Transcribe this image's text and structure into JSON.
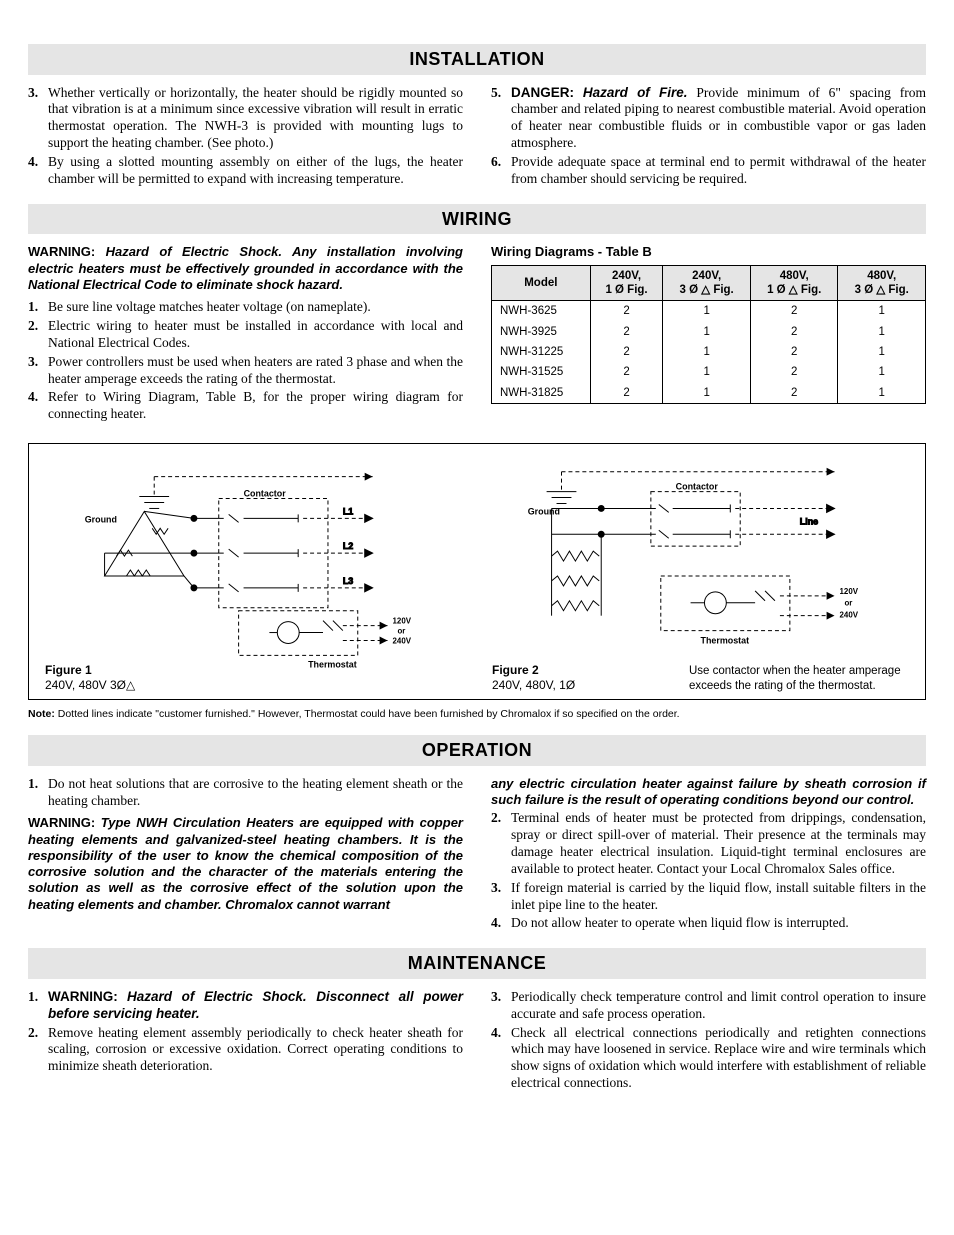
{
  "sections": {
    "installation": "INSTALLATION",
    "wiring": "WIRING",
    "operation": "OPERATION",
    "maintenance": "MAINTENANCE"
  },
  "installation_left": [
    {
      "n": "3.",
      "t": "Whether vertically or horizontally, the heater should be rigidly mounted so that vibration is at a minimum since excessive vibration will result in erratic thermostat operation. The NWH-3 is provided with mounting lugs to support the heating chamber. (See photo.)"
    },
    {
      "n": "4.",
      "t": "By using a slotted mounting assembly on either of the lugs, the heater chamber will be permitted to expand with increasing temperature."
    }
  ],
  "installation_right": [
    {
      "n": "5.",
      "label": "DANGER:",
      "em": "Hazard of Fire.",
      "t": " Provide minimum of 6\" spacing from chamber and related piping to nearest combustible material. Avoid operation of heater near combustible fluids or in combustible vapor or gas laden atmosphere."
    },
    {
      "n": "6.",
      "t": "Provide adequate space at terminal end to permit withdrawal of the heater from chamber should servicing be required."
    }
  ],
  "wiring_warning_label": "WARNING: ",
  "wiring_warning": "Hazard of Electric Shock. Any installation involving electric heaters must be effectively grounded in accordance with the National Electrical Code to eliminate shock hazard.",
  "wiring_list": [
    {
      "n": "1.",
      "t": "Be sure line voltage matches heater voltage (on nameplate)."
    },
    {
      "n": "2.",
      "t": "Electric wiring to heater must be installed in accordance with local and National Electrical Codes."
    },
    {
      "n": "3.",
      "t": "Power controllers must be used when heaters are rated 3 phase and when the heater amperage exceeds the rating of the thermostat."
    },
    {
      "n": "4.",
      "t": "Refer to Wiring Diagram, Table B, for the proper wiring diagram for connecting heater."
    }
  ],
  "table_title": "Wiring Diagrams - Table B",
  "table": {
    "columns": [
      "Model",
      "240V,\n1 Ø   Fig.",
      "240V,\n3 Ø △ Fig.",
      "480V,\n1 Ø △ Fig.",
      "480V,\n3 Ø △ Fig."
    ],
    "rows": [
      [
        "NWH-3625",
        "2",
        "1",
        "2",
        "1"
      ],
      [
        "NWH-3925",
        "2",
        "1",
        "2",
        "1"
      ],
      [
        "NWH-31225",
        "2",
        "1",
        "2",
        "1"
      ],
      [
        "NWH-31525",
        "2",
        "1",
        "2",
        "1"
      ],
      [
        "NWH-31825",
        "2",
        "1",
        "2",
        "1"
      ]
    ],
    "header_bg": "#e5e5e5",
    "border_color": "#000000"
  },
  "figures": {
    "f1": {
      "label": "Figure 1",
      "sub": "240V, 480V 3Ø△"
    },
    "f2": {
      "label": "Figure 2",
      "sub": "240V, 480V, 1Ø",
      "note": "Use contactor when the heater amperage exceeds the rating of the thermostat."
    },
    "svg_labels": {
      "ground": "Ground",
      "contactor": "Contactor",
      "l1": "L1",
      "l2": "L2",
      "l3": "L3",
      "line": "Line",
      "v120": "120V",
      "or": "or",
      "v240": "240V",
      "thermostat": "Thermostat"
    }
  },
  "diagrams_note_label": "Note:",
  "diagrams_note": " Dotted lines indicate \"customer furnished.\" However, Thermostat could have been furnished by Chromalox if so specified on the order.",
  "operation_left_1": {
    "n": "1.",
    "t": "Do not heat solutions that are corrosive to the heating element sheath or the heating chamber."
  },
  "op_warn_label": "WARNING: ",
  "op_warn_left": "Type NWH Circulation Heaters are equipped with copper heating elements and galvanized-steel heating chambers. It is the responsibility of the user to know the chemical composition of the corrosive solution and the character of the materials entering the solution as well as the corrosive effect of the solution upon the heating elements and chamber. Chromalox cannot warrant",
  "op_warn_right": "any electric circulation heater against failure by sheath corrosion if such failure is the result of operating conditions beyond our control.",
  "operation_right": [
    {
      "n": "2.",
      "t": "Terminal ends of heater must be protected from drippings, condensation, spray or direct spill-over of material. Their presence at the terminals may damage heater electrical insulation. Liquid-tight terminal enclosures are available to protect heater. Contact your Local Chromalox Sales office."
    },
    {
      "n": "3.",
      "t": "If foreign material is carried by the liquid flow, install suitable filters in the inlet pipe line to the heater."
    },
    {
      "n": "4.",
      "t": "Do not allow heater to operate when liquid flow is interrupted."
    }
  ],
  "maintenance_left": [
    {
      "n": "1.",
      "label": "WARNING:",
      "em": "Hazard of Electric Shock. Disconnect all power before servicing heater."
    },
    {
      "n": "2.",
      "t": "Remove heating element assembly periodically to check heater sheath for scaling, corrosion or excessive oxidation. Correct operating conditions to minimize sheath deterioration."
    }
  ],
  "maintenance_right": [
    {
      "n": "3.",
      "t": "Periodically check temperature control and limit control operation to insure accurate and safe process operation."
    },
    {
      "n": "4.",
      "t": "Check all electrical connections periodically and retighten connections which may have loosened in service. Replace wire and wire terminals which show signs of oxidation which would interfere with establishment of reliable electrical connections."
    }
  ],
  "colors": {
    "section_bg": "#e5e5e5",
    "text": "#000000"
  }
}
